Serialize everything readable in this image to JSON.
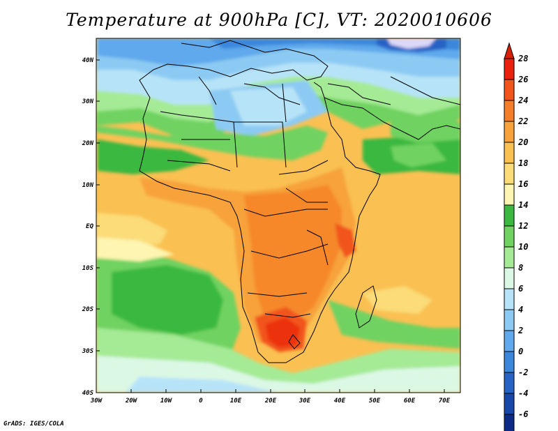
{
  "title": "Temperature at 900hPa [C], VT: 2020010606",
  "footer": "GrADS: IGES/COLA",
  "map": {
    "lat_labels": [
      "40N",
      "30N",
      "20N",
      "10N",
      "EQ",
      "10S",
      "20S",
      "30S",
      "40S"
    ],
    "lon_labels": [
      "30W",
      "20W",
      "10W",
      "0",
      "10E",
      "20E",
      "30E",
      "40E",
      "50E",
      "60E",
      "70E"
    ],
    "extent": {
      "lon": [
        -30,
        75
      ],
      "lat": [
        -40,
        45
      ]
    }
  },
  "colorbar": {
    "labels": [
      "28",
      "26",
      "24",
      "22",
      "20",
      "18",
      "16",
      "14",
      "12",
      "10",
      "8",
      "6",
      "4",
      "2",
      "0",
      "-2",
      "-4",
      "-6"
    ],
    "colors": [
      "#e8220d",
      "#f1551c",
      "#f57f28",
      "#f7a23a",
      "#fac052",
      "#fbdc78",
      "#fdf5b1",
      "#3ab83f",
      "#6fd261",
      "#a5ea95",
      "#dbf8e5",
      "#b7e3f8",
      "#8ccaf3",
      "#5fa9ec",
      "#3b87dc",
      "#2763c5",
      "#1647a9",
      "#0c2b86"
    ],
    "top_color": "#d6200a",
    "bottom_color": "#e6e2fb"
  }
}
